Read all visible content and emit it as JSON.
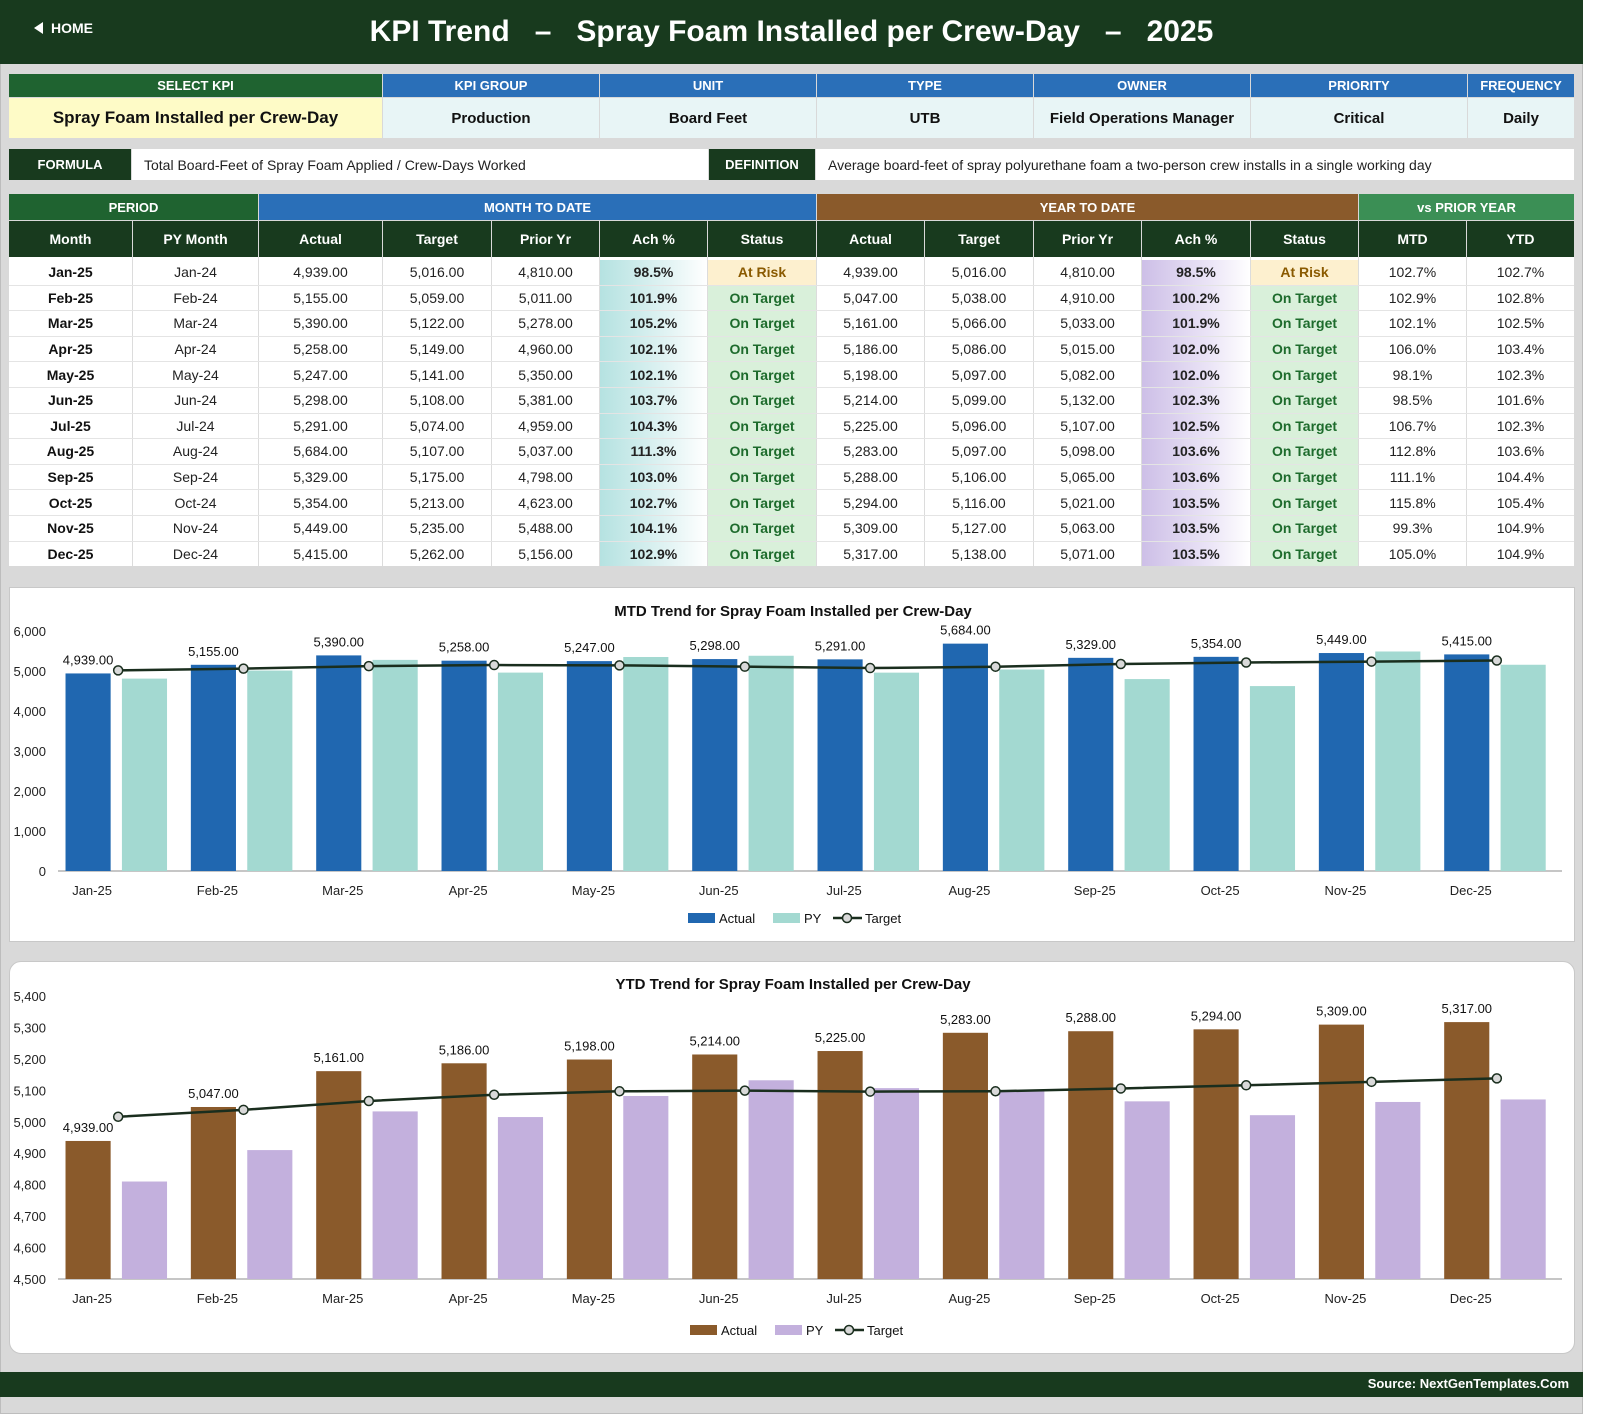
{
  "header": {
    "home_label": "HOME",
    "title": "KPI Trend   –   Spray Foam Installed per Crew-Day   –   2025"
  },
  "kpi_info": {
    "headers": [
      "SELECT KPI",
      "KPI GROUP",
      "UNIT",
      "TYPE",
      "OWNER",
      "PRIORITY",
      "FREQUENCY"
    ],
    "values": [
      "Spray Foam Installed per Crew-Day",
      "Production",
      "Board Feet",
      "UTB",
      "Field Operations Manager",
      "Critical",
      "Daily"
    ]
  },
  "formula": {
    "label": "FORMULA",
    "text": "Total Board-Feet of Spray Foam Applied / Crew-Days Worked",
    "definition_label": "DEFINITION",
    "definition_text": "Average board-feet of spray polyurethane foam a two-person crew installs in a single working day"
  },
  "table": {
    "groups": [
      "PERIOD",
      "MONTH TO DATE",
      "YEAR TO DATE",
      "vs PRIOR YEAR"
    ],
    "columns": [
      "Month",
      "PY Month",
      "Actual",
      "Target",
      "Prior Yr",
      "Ach %",
      "Status",
      "Actual",
      "Target",
      "Prior Yr",
      "Ach %",
      "Status",
      "MTD",
      "YTD"
    ],
    "rows": [
      [
        "Jan-25",
        "Jan-24",
        "4,939.00",
        "5,016.00",
        "4,810.00",
        "98.5%",
        "At Risk",
        "4,939.00",
        "5,016.00",
        "4,810.00",
        "98.5%",
        "At Risk",
        "102.7%",
        "102.7%"
      ],
      [
        "Feb-25",
        "Feb-24",
        "5,155.00",
        "5,059.00",
        "5,011.00",
        "101.9%",
        "On Target",
        "5,047.00",
        "5,038.00",
        "4,910.00",
        "100.2%",
        "On Target",
        "102.9%",
        "102.8%"
      ],
      [
        "Mar-25",
        "Mar-24",
        "5,390.00",
        "5,122.00",
        "5,278.00",
        "105.2%",
        "On Target",
        "5,161.00",
        "5,066.00",
        "5,033.00",
        "101.9%",
        "On Target",
        "102.1%",
        "102.5%"
      ],
      [
        "Apr-25",
        "Apr-24",
        "5,258.00",
        "5,149.00",
        "4,960.00",
        "102.1%",
        "On Target",
        "5,186.00",
        "5,086.00",
        "5,015.00",
        "102.0%",
        "On Target",
        "106.0%",
        "103.4%"
      ],
      [
        "May-25",
        "May-24",
        "5,247.00",
        "5,141.00",
        "5,350.00",
        "102.1%",
        "On Target",
        "5,198.00",
        "5,097.00",
        "5,082.00",
        "102.0%",
        "On Target",
        "98.1%",
        "102.3%"
      ],
      [
        "Jun-25",
        "Jun-24",
        "5,298.00",
        "5,108.00",
        "5,381.00",
        "103.7%",
        "On Target",
        "5,214.00",
        "5,099.00",
        "5,132.00",
        "102.3%",
        "On Target",
        "98.5%",
        "101.6%"
      ],
      [
        "Jul-25",
        "Jul-24",
        "5,291.00",
        "5,074.00",
        "4,959.00",
        "104.3%",
        "On Target",
        "5,225.00",
        "5,096.00",
        "5,107.00",
        "102.5%",
        "On Target",
        "106.7%",
        "102.3%"
      ],
      [
        "Aug-25",
        "Aug-24",
        "5,684.00",
        "5,107.00",
        "5,037.00",
        "111.3%",
        "On Target",
        "5,283.00",
        "5,097.00",
        "5,098.00",
        "103.6%",
        "On Target",
        "112.8%",
        "103.6%"
      ],
      [
        "Sep-25",
        "Sep-24",
        "5,329.00",
        "5,175.00",
        "4,798.00",
        "103.0%",
        "On Target",
        "5,288.00",
        "5,106.00",
        "5,065.00",
        "103.6%",
        "On Target",
        "111.1%",
        "104.4%"
      ],
      [
        "Oct-25",
        "Oct-24",
        "5,354.00",
        "5,213.00",
        "4,623.00",
        "102.7%",
        "On Target",
        "5,294.00",
        "5,116.00",
        "5,021.00",
        "103.5%",
        "On Target",
        "115.8%",
        "105.4%"
      ],
      [
        "Nov-25",
        "Nov-24",
        "5,449.00",
        "5,235.00",
        "5,488.00",
        "104.1%",
        "On Target",
        "5,309.00",
        "5,127.00",
        "5,063.00",
        "103.5%",
        "On Target",
        "99.3%",
        "104.9%"
      ],
      [
        "Dec-25",
        "Dec-24",
        "5,415.00",
        "5,262.00",
        "5,156.00",
        "102.9%",
        "On Target",
        "5,317.00",
        "5,138.00",
        "5,071.00",
        "103.5%",
        "On Target",
        "105.0%",
        "104.9%"
      ]
    ]
  },
  "colors": {
    "mtd_actual": "#2067b0",
    "mtd_py": "#a3d9d1",
    "ytd_actual": "#8a5a2b",
    "ytd_py": "#c3b0dd",
    "target_line": "#1a2e1e",
    "target_marker_fill": "#d9d9d9"
  },
  "chart_data": [
    {
      "type": "bar",
      "title": "MTD Trend for Spray Foam Installed per Crew-Day",
      "categories": [
        "Jan-25",
        "Feb-25",
        "Mar-25",
        "Apr-25",
        "May-25",
        "Jun-25",
        "Jul-25",
        "Aug-25",
        "Sep-25",
        "Oct-25",
        "Nov-25",
        "Dec-25"
      ],
      "series": [
        {
          "name": "Actual",
          "kind": "bar",
          "values": [
            4939,
            5155,
            5390,
            5258,
            5247,
            5298,
            5291,
            5684,
            5329,
            5354,
            5449,
            5415
          ]
        },
        {
          "name": "PY",
          "kind": "bar",
          "values": [
            4810,
            5011,
            5278,
            4960,
            5350,
            5381,
            4959,
            5037,
            4798,
            4623,
            5488,
            5156
          ]
        },
        {
          "name": "Target",
          "kind": "line",
          "values": [
            5016,
            5059,
            5122,
            5149,
            5141,
            5108,
            5074,
            5107,
            5175,
            5213,
            5235,
            5262
          ]
        }
      ],
      "data_labels": [
        "4,939.00",
        "5,155.00",
        "5,390.00",
        "5,258.00",
        "5,247.00",
        "5,298.00",
        "5,291.00",
        "5,684.00",
        "5,329.00",
        "5,354.00",
        "5,449.00",
        "5,415.00"
      ],
      "ylim": [
        0,
        6000
      ],
      "yticks": [
        0,
        1000,
        2000,
        3000,
        4000,
        5000,
        6000
      ],
      "ytick_labels": [
        "0",
        "1,000",
        "2,000",
        "3,000",
        "4,000",
        "5,000",
        "6,000"
      ],
      "legend": "bottom",
      "grid": false
    },
    {
      "type": "bar",
      "title": "YTD Trend for Spray Foam Installed per Crew-Day",
      "categories": [
        "Jan-25",
        "Feb-25",
        "Mar-25",
        "Apr-25",
        "May-25",
        "Jun-25",
        "Jul-25",
        "Aug-25",
        "Sep-25",
        "Oct-25",
        "Nov-25",
        "Dec-25"
      ],
      "series": [
        {
          "name": "Actual",
          "kind": "bar",
          "values": [
            4939,
            5047,
            5161,
            5186,
            5198,
            5214,
            5225,
            5283,
            5288,
            5294,
            5309,
            5317
          ]
        },
        {
          "name": "PY",
          "kind": "bar",
          "values": [
            4810,
            4910,
            5033,
            5015,
            5082,
            5132,
            5107,
            5098,
            5065,
            5021,
            5063,
            5071
          ]
        },
        {
          "name": "Target",
          "kind": "line",
          "values": [
            5016,
            5038,
            5066,
            5086,
            5097,
            5099,
            5096,
            5097,
            5106,
            5116,
            5127,
            5138
          ]
        }
      ],
      "data_labels": [
        "4,939.00",
        "5,047.00",
        "5,161.00",
        "5,186.00",
        "5,198.00",
        "5,214.00",
        "5,225.00",
        "5,283.00",
        "5,288.00",
        "5,294.00",
        "5,309.00",
        "5,317.00"
      ],
      "ylim": [
        4500,
        5400
      ],
      "yticks": [
        4500,
        4600,
        4700,
        4800,
        4900,
        5000,
        5100,
        5200,
        5300,
        5400
      ],
      "ytick_labels": [
        "4,500",
        "4,600",
        "4,700",
        "4,800",
        "4,900",
        "5,000",
        "5,100",
        "5,200",
        "5,300",
        "5,400"
      ],
      "legend": "bottom",
      "grid": false
    }
  ],
  "footer": {
    "source": "Source: NextGenTemplates.Com"
  }
}
